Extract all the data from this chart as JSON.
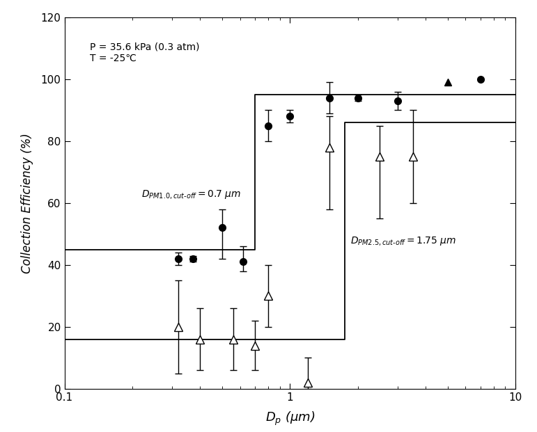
{
  "condition_text": "P = 35.6 kPa (0.3 atm)\nT = -25℃",
  "xlabel": "$D_{p}$ (μm)",
  "ylabel": "Collection Efficiency (%)",
  "xlim": [
    0.1,
    10
  ],
  "ylim": [
    0,
    120
  ],
  "yticks": [
    0,
    20,
    40,
    60,
    80,
    100,
    120
  ],
  "circle_data": {
    "x": [
      0.32,
      0.37,
      0.5,
      0.62,
      0.8,
      1.0,
      1.5,
      2.0,
      3.0,
      7.0
    ],
    "y": [
      42,
      42,
      52,
      41,
      85,
      88,
      94,
      94,
      93,
      100
    ],
    "yerr_lo": [
      2,
      1,
      10,
      3,
      5,
      2,
      5,
      1,
      3,
      0
    ],
    "yerr_hi": [
      2,
      1,
      6,
      5,
      5,
      2,
      5,
      1,
      3,
      0
    ]
  },
  "triangle_open_data": {
    "x": [
      0.32,
      0.4,
      0.56,
      0.7,
      0.8,
      1.2,
      1.5,
      2.5,
      3.5
    ],
    "y": [
      20,
      16,
      16,
      14,
      30,
      2,
      78,
      75,
      75
    ],
    "yerr_lo": [
      15,
      10,
      10,
      8,
      10,
      2,
      20,
      20,
      15
    ],
    "yerr_hi": [
      15,
      10,
      10,
      8,
      10,
      8,
      10,
      10,
      15
    ]
  },
  "triangle_filled_x": [
    5.0
  ],
  "triangle_filled_y": [
    99
  ],
  "step_line1_x": [
    0.1,
    0.7,
    0.7,
    10.0
  ],
  "step_line1_y": [
    45,
    45,
    95,
    95
  ],
  "step_line2_x": [
    0.1,
    1.75,
    1.75,
    10.0
  ],
  "step_line2_y": [
    16,
    16,
    86,
    86
  ],
  "ann1_x": 0.22,
  "ann1_y": 62,
  "ann2_x": 1.85,
  "ann2_y": 47,
  "background_color": "#ffffff",
  "line_color": "#000000"
}
